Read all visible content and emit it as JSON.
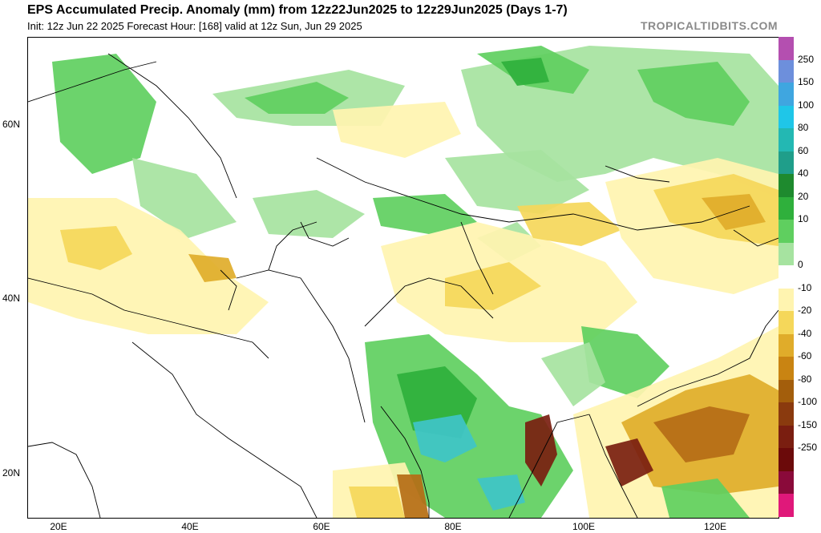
{
  "header": {
    "title": "EPS Accumulated Precip. Anomaly (mm) from 12z22Jun2025 to 12z29Jun2025 (Days 1-7)",
    "subtitle": "Init: 12z Jun 22 2025   Forecast Hour: [168]   valid at 12z Sun, Jun 29 2025",
    "brand": "TROPICALTIDBITS.COM"
  },
  "axes": {
    "lat_labels": [
      "60N",
      "40N",
      "20N"
    ],
    "lon_labels": [
      "20E",
      "40E",
      "60E",
      "80E",
      "100E",
      "120E"
    ]
  },
  "colorbar": {
    "levels": [
      "250",
      "150",
      "100",
      "80",
      "60",
      "40",
      "20",
      "10",
      "0",
      "-10",
      "-20",
      "-40",
      "-60",
      "-80",
      "-100",
      "-150",
      "-250"
    ],
    "colors": [
      "#b44fb0",
      "#6d8fdc",
      "#3fa6e0",
      "#1fc6e8",
      "#23b8b3",
      "#1f9e8a",
      "#1e8a2e",
      "#2fb03c",
      "#5fcf5f",
      "#a6e3a0",
      "#ffffff",
      "#fff4b0",
      "#f5d75a",
      "#e0ac2a",
      "#c98412",
      "#a35e0c",
      "#8a3a0e",
      "#7a1e10",
      "#6b0a0a",
      "#8a0a3a",
      "#e0187a"
    ]
  },
  "map": {
    "colors": {
      "wet_light": "#a6e3a0",
      "wet": "#5fcf5f",
      "wet_dark": "#2fb03c",
      "very_wet": "#3fc4c8",
      "dry_light": "#fff4b0",
      "dry": "#f5d75a",
      "dry_mid": "#e0ac2a",
      "dry_dark": "#b56c16",
      "dry_very": "#7a1e10",
      "border": "#000000"
    }
  }
}
